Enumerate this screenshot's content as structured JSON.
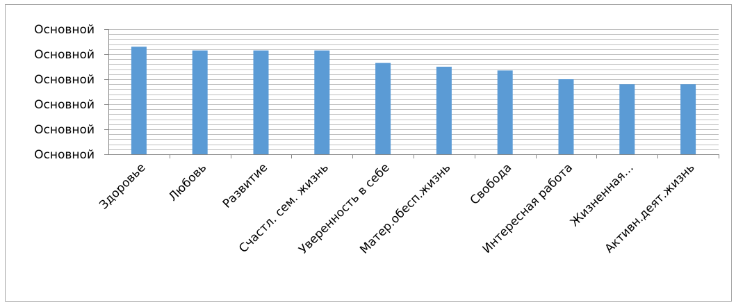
{
  "chart_data": {
    "type": "bar",
    "title": "",
    "xlabel": "",
    "ylabel": "",
    "categories": [
      "Здоровье",
      "Любовь",
      "Развитие",
      "Счастл. сем. жизнь",
      "Уверенность в себе",
      "Матер.обесп.жизнь",
      "Свобода",
      "Интересная работа",
      "Жизненная…",
      "Активн.деят.жизнь"
    ],
    "values": [
      4.3,
      4.15,
      4.15,
      4.15,
      3.65,
      3.5,
      3.35,
      3.0,
      2.8,
      2.8
    ],
    "ylim": [
      0,
      5
    ],
    "y_ticks": [
      0,
      1,
      2,
      3,
      4,
      5
    ],
    "y_tick_labels": [
      "Основной",
      "Основной",
      "Основной",
      "Основной",
      "Основной",
      "Основной"
    ],
    "minor_gridlines": true,
    "colors": {
      "bar": "#5b9bd5",
      "grid": "#bfbfbf",
      "axis": "#868686"
    }
  }
}
